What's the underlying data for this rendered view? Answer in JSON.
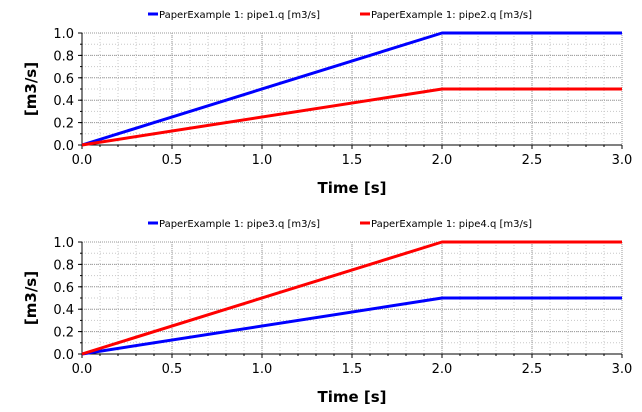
{
  "chart_data": [
    {
      "type": "line",
      "xlabel": "Time [s]",
      "ylabel": "[m3/s]",
      "xlim": [
        0,
        3
      ],
      "ylim": [
        0,
        1
      ],
      "xticks": [
        "0.0",
        "0.5",
        "1.0",
        "1.5",
        "2.0",
        "2.5",
        "3.0"
      ],
      "yticks": [
        "0.0",
        "0.2",
        "0.4",
        "0.6",
        "0.8",
        "1.0"
      ],
      "grid": true,
      "legend_position": "top",
      "series": [
        {
          "name": "PaperExample 1: pipe1.q [m3/s]",
          "color": "#0000ff",
          "x": [
            0,
            2,
            3
          ],
          "y": [
            0,
            1.0,
            1.0
          ]
        },
        {
          "name": "PaperExample 1: pipe2.q [m3/s]",
          "color": "#ff0000",
          "x": [
            0,
            2,
            3
          ],
          "y": [
            0,
            0.5,
            0.5
          ]
        }
      ]
    },
    {
      "type": "line",
      "xlabel": "Time [s]",
      "ylabel": "[m3/s]",
      "xlim": [
        0,
        3
      ],
      "ylim": [
        0,
        1
      ],
      "xticks": [
        "0.0",
        "0.5",
        "1.0",
        "1.5",
        "2.0",
        "2.5",
        "3.0"
      ],
      "yticks": [
        "0.0",
        "0.2",
        "0.4",
        "0.6",
        "0.8",
        "1.0"
      ],
      "grid": true,
      "legend_position": "top",
      "series": [
        {
          "name": "PaperExample 1: pipe3.q [m3/s]",
          "color": "#0000ff",
          "x": [
            0,
            2,
            3
          ],
          "y": [
            0,
            0.5,
            0.5
          ]
        },
        {
          "name": "PaperExample 1: pipe4.q [m3/s]",
          "color": "#ff0000",
          "x": [
            0,
            2,
            3
          ],
          "y": [
            0,
            1.0,
            1.0
          ]
        }
      ]
    }
  ]
}
